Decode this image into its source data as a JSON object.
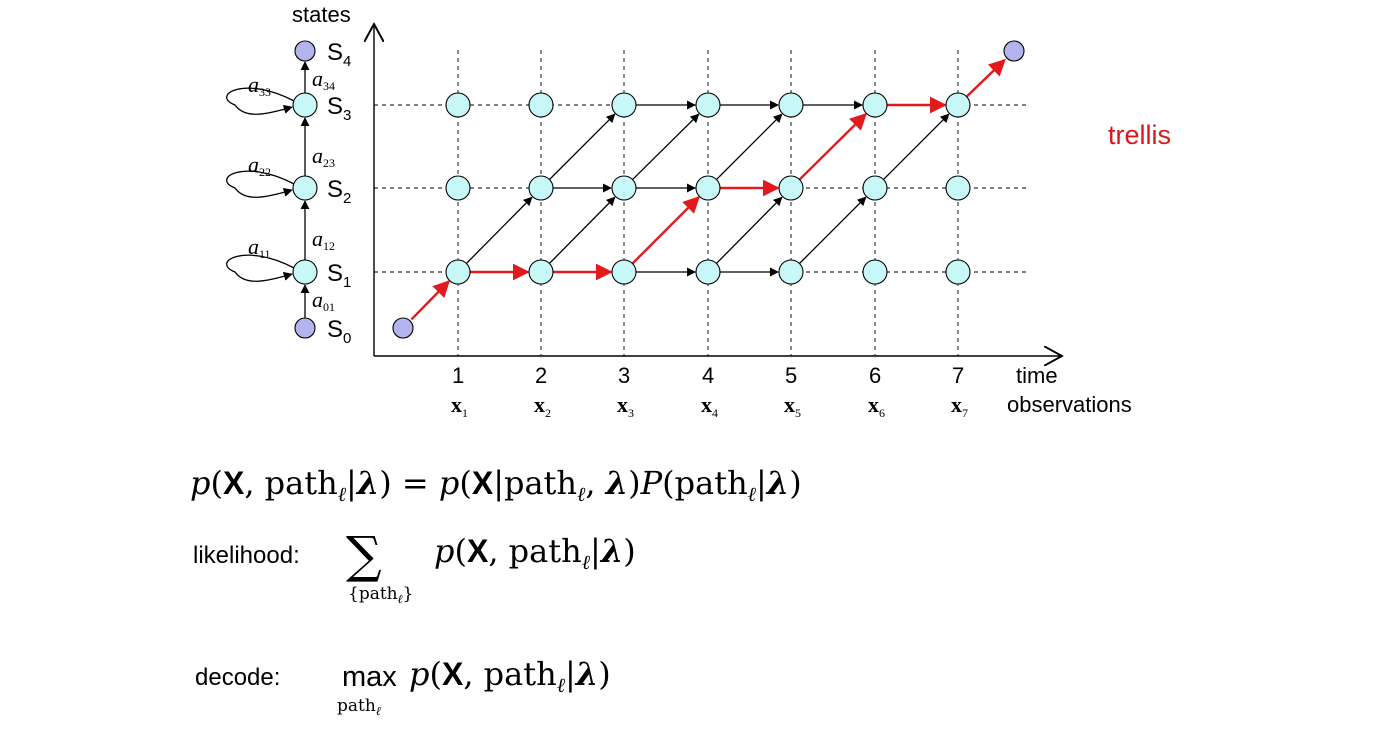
{
  "diagram": {
    "axis_y_label": "states",
    "axis_x_label_time": "time",
    "axis_x_label_obs": "observations",
    "title_right": "trellis",
    "title_color": "#d7191c",
    "node_fill": "#c8f7f7",
    "start_end_fill": "#b3b3ee",
    "path_color": "#e31a1c",
    "time_labels": [
      "1",
      "2",
      "3",
      "4",
      "5",
      "6",
      "7"
    ],
    "obs_labels": [
      "x",
      "x",
      "x",
      "x",
      "x",
      "x",
      "x"
    ],
    "obs_subs": [
      "1",
      "2",
      "3",
      "4",
      "5",
      "6",
      "7"
    ],
    "state_names": [
      {
        "main": "S",
        "sub": "4"
      },
      {
        "main": "S",
        "sub": "3"
      },
      {
        "main": "S",
        "sub": "2"
      },
      {
        "main": "S",
        "sub": "1"
      },
      {
        "main": "S",
        "sub": "0"
      }
    ],
    "transition_labels": [
      {
        "main": "a",
        "sub": "33"
      },
      {
        "main": "a",
        "sub": "34"
      },
      {
        "main": "a",
        "sub": "22"
      },
      {
        "main": "a",
        "sub": "23"
      },
      {
        "main": "a",
        "sub": "11"
      },
      {
        "main": "a",
        "sub": "12"
      },
      {
        "main": "a",
        "sub": "01"
      }
    ]
  },
  "equations": {
    "joint": {
      "lhs_p": "p",
      "X": "X",
      "path": "path",
      "ell": "ℓ",
      "lambda": "λ",
      "rhs_P": "P"
    },
    "likelihood": {
      "label": "likelihood:",
      "sigma": "∑",
      "sum_sub_open": "{",
      "sum_sub_path": "path",
      "sum_sub_ell": "ℓ",
      "sum_sub_close": "}"
    },
    "decode": {
      "label": "decode:",
      "max": "max",
      "max_sub_path": "path",
      "max_sub_ell": "ℓ"
    }
  }
}
